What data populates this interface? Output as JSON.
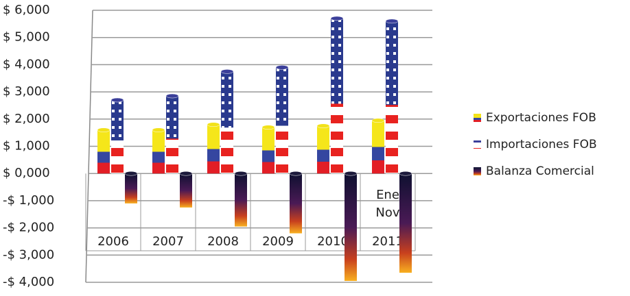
{
  "chart_data": {
    "type": "bar",
    "categories": [
      "2006",
      "2007",
      "2008",
      "2009",
      "2010",
      "2011"
    ],
    "annotation": [
      "Ene",
      "Nov"
    ],
    "series": [
      {
        "name": "Exportaciones FOB",
        "color": "#f2e21a",
        "values": [
          1600,
          1600,
          1800,
          1700,
          1750,
          1950
        ]
      },
      {
        "name": "Importaciones FOB",
        "color": "#3b3f9a",
        "values": [
          2700,
          2850,
          3750,
          3900,
          5700,
          5600
        ]
      },
      {
        "name": "Balanza Comercial",
        "color": "#1c1a3c",
        "values": [
          -1100,
          -1250,
          -1950,
          -2200,
          -3950,
          -3650
        ]
      }
    ],
    "ylim": [
      -4000,
      6000
    ],
    "yticks": [
      {
        "value": -4000,
        "label": "-$ 4,000"
      },
      {
        "value": -3000,
        "label": "-$ 3,000"
      },
      {
        "value": -2000,
        "label": "-$ 2,000"
      },
      {
        "value": -1000,
        "label": "-$ 1,000"
      },
      {
        "value": 0,
        "label": "$ 0,000"
      },
      {
        "value": 1000,
        "label": "$ 1,000"
      },
      {
        "value": 2000,
        "label": "$ 2,000"
      },
      {
        "value": 3000,
        "label": "$ 3,000"
      },
      {
        "value": 4000,
        "label": "$ 4,000"
      },
      {
        "value": 5000,
        "label": "$ 5,000"
      },
      {
        "value": 6000,
        "label": "$ 6,000"
      }
    ],
    "grid": true,
    "legend": "right"
  }
}
